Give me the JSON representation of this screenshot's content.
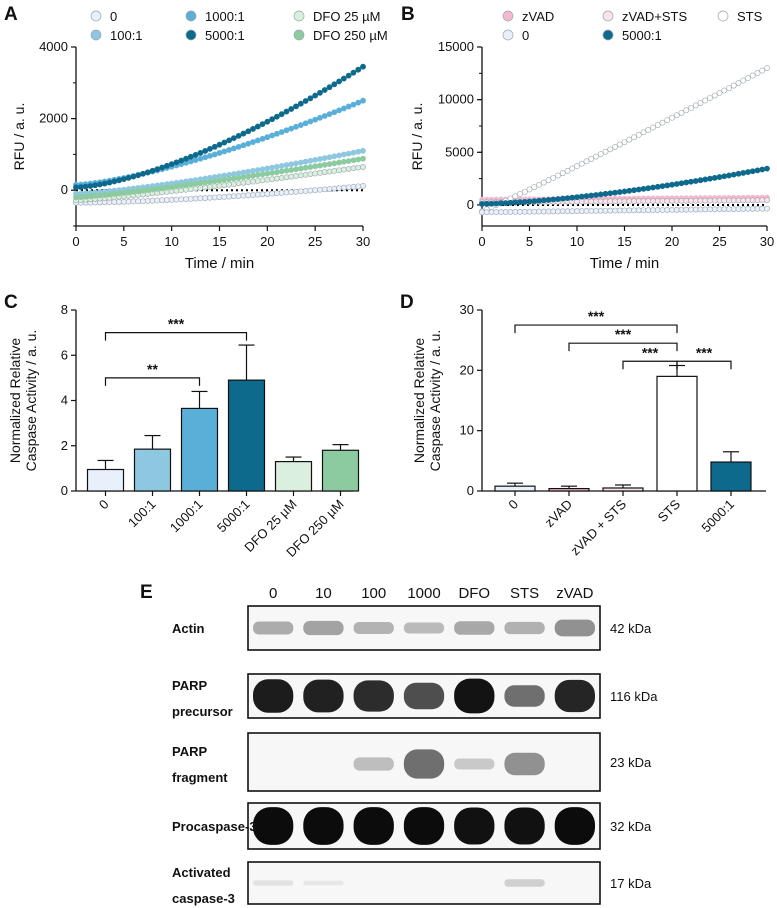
{
  "colors": {
    "c0": "#e8f1fb",
    "c100": "#8ec8e0",
    "c1000": "#5aafd9",
    "c5000": "#0e6a8c",
    "dfo25": "#dbefdf",
    "dfo250": "#8ccba0",
    "zvad": "#f4b8cf",
    "zvadsts": "#fbe3ec",
    "sts": "#ffffff",
    "dotline": "#000000"
  },
  "chart_data": [
    {
      "id": "A",
      "panel_label": "A",
      "type": "scatter",
      "title": "",
      "xlabel": "Time / min",
      "ylabel": "RFU / a. u.",
      "xlim": [
        0,
        30
      ],
      "ylim": [
        -1000,
        4000
      ],
      "xticks": [
        "0",
        "5",
        "10",
        "15",
        "20",
        "25",
        "30"
      ],
      "yticks": [
        "0",
        "2000",
        "4000"
      ],
      "legend": [
        "0",
        "1000:1",
        "DFO 25 µM",
        "100:1",
        "5000:1",
        "DFO 250 µM"
      ],
      "series": [
        {
          "name": "0",
          "color_key": "c0",
          "start": -350,
          "end": 120,
          "shape": 1.6
        },
        {
          "name": "100:1",
          "color_key": "c100",
          "start": -100,
          "end": 1100,
          "shape": 1.3
        },
        {
          "name": "1000:1",
          "color_key": "c1000",
          "start": 150,
          "end": 2500,
          "shape": 1.4
        },
        {
          "name": "5000:1",
          "color_key": "c5000",
          "start": 80,
          "end": 3450,
          "shape": 1.5
        },
        {
          "name": "DFO 25 µM",
          "color_key": "dfo25",
          "start": -280,
          "end": 650,
          "shape": 1.2
        },
        {
          "name": "DFO 250 µM",
          "color_key": "dfo250",
          "start": -200,
          "end": 880,
          "shape": 1.2
        }
      ]
    },
    {
      "id": "B",
      "panel_label": "B",
      "type": "scatter",
      "title": "",
      "xlabel": "Time / min",
      "ylabel": "RFU / a. u.",
      "xlim": [
        0,
        30
      ],
      "ylim": [
        -2000,
        15000
      ],
      "xticks": [
        "0",
        "5",
        "10",
        "15",
        "20",
        "25",
        "30"
      ],
      "yticks": [
        "0",
        "5000",
        "10000",
        "15000"
      ],
      "legend": [
        "zVAD",
        "zVAD+STS",
        "STS",
        "0",
        "5000:1"
      ],
      "series": [
        {
          "name": "zVAD",
          "color_key": "zvad",
          "start": 500,
          "end": 700,
          "shape": 1.0
        },
        {
          "name": "zVAD+STS",
          "color_key": "zvadsts",
          "start": 250,
          "end": 450,
          "shape": 1.0
        },
        {
          "name": "STS",
          "color_key": "sts",
          "start": -600,
          "end": 13000,
          "shape": 1.05
        },
        {
          "name": "0",
          "color_key": "c0",
          "start": -700,
          "end": -350,
          "shape": 1.0
        },
        {
          "name": "5000:1",
          "color_key": "c5000",
          "start": 100,
          "end": 3450,
          "shape": 1.5
        }
      ]
    },
    {
      "id": "C",
      "panel_label": "C",
      "type": "bar",
      "title": "",
      "xlabel": "",
      "ylabel": "Normalized Relative Caspase Activity / a. u.",
      "ylabel_lines": [
        "Normalized Relative",
        "Caspase Activity / a. u."
      ],
      "ylim": [
        0,
        8
      ],
      "yticks": [
        "0",
        "2",
        "4",
        "6",
        "8"
      ],
      "categories": [
        "0",
        "100:1",
        "1000:1",
        "5000:1",
        "DFO 25 µM",
        "DFO 250 µM"
      ],
      "values": [
        0.95,
        1.85,
        3.65,
        4.9,
        1.3,
        1.8
      ],
      "errors": [
        0.4,
        0.6,
        0.75,
        1.55,
        0.2,
        0.25
      ],
      "color_keys": [
        "c0",
        "c100",
        "c1000",
        "c5000",
        "dfo25",
        "dfo250"
      ],
      "annotations": [
        {
          "from": 0,
          "to": 3,
          "label": "***",
          "y": 7.0
        },
        {
          "from": 0,
          "to": 2,
          "label": "**",
          "y": 5.0
        }
      ]
    },
    {
      "id": "D",
      "panel_label": "D",
      "type": "bar",
      "title": "",
      "xlabel": "",
      "ylabel": "Normalized Relative Caspase Activity / a. u.",
      "ylabel_lines": [
        "Normalized Relative",
        "Caspase Activity / a. u."
      ],
      "ylim": [
        0,
        30
      ],
      "yticks": [
        "0",
        "10",
        "20",
        "30"
      ],
      "categories": [
        "0",
        "zVAD",
        "zVAD + STS",
        "STS",
        "5000:1"
      ],
      "values": [
        0.8,
        0.4,
        0.5,
        19.0,
        4.8
      ],
      "errors": [
        0.5,
        0.4,
        0.5,
        1.8,
        1.7
      ],
      "color_keys": [
        "c0",
        "zvad",
        "zvadsts",
        "sts",
        "c5000"
      ],
      "annotations": [
        {
          "from": 0,
          "to": 3,
          "label": "***",
          "y": 27.5
        },
        {
          "from": 1,
          "to": 3,
          "label": "***",
          "y": 24.5
        },
        {
          "from": 2,
          "to": 3,
          "label": "***",
          "y": 21.5
        },
        {
          "from": 3,
          "to": 4,
          "label": "***",
          "y": 21.5
        }
      ]
    }
  ],
  "blot": {
    "panel_label": "E",
    "lanes": [
      "0",
      "10",
      "100",
      "1000",
      "DFO",
      "STS",
      "zVAD"
    ],
    "rows": [
      {
        "label_lines": [
          "Actin"
        ],
        "kda": "42 kDa",
        "intensity": [
          0.28,
          0.32,
          0.25,
          0.22,
          0.3,
          0.26,
          0.4
        ]
      },
      {
        "label_lines": [
          "PARP",
          "precursor"
        ],
        "kda": "116 kDa",
        "intensity": [
          0.92,
          0.9,
          0.85,
          0.7,
          0.96,
          0.55,
          0.88
        ]
      },
      {
        "label_lines": [
          "PARP",
          "fragment"
        ],
        "kda": "23 kDa",
        "intensity": [
          0.0,
          0.0,
          0.2,
          0.55,
          0.15,
          0.4,
          0.0
        ]
      },
      {
        "label_lines": [
          "Procaspase-3"
        ],
        "kda": "32 kDa",
        "intensity": [
          0.99,
          0.99,
          0.99,
          0.99,
          0.97,
          0.97,
          0.99
        ]
      },
      {
        "label_lines": [
          "Activated",
          "caspase-3"
        ],
        "kda": "17 kDa",
        "intensity": [
          0.04,
          0.02,
          0.0,
          0.0,
          0.0,
          0.12,
          0.0
        ]
      }
    ]
  }
}
